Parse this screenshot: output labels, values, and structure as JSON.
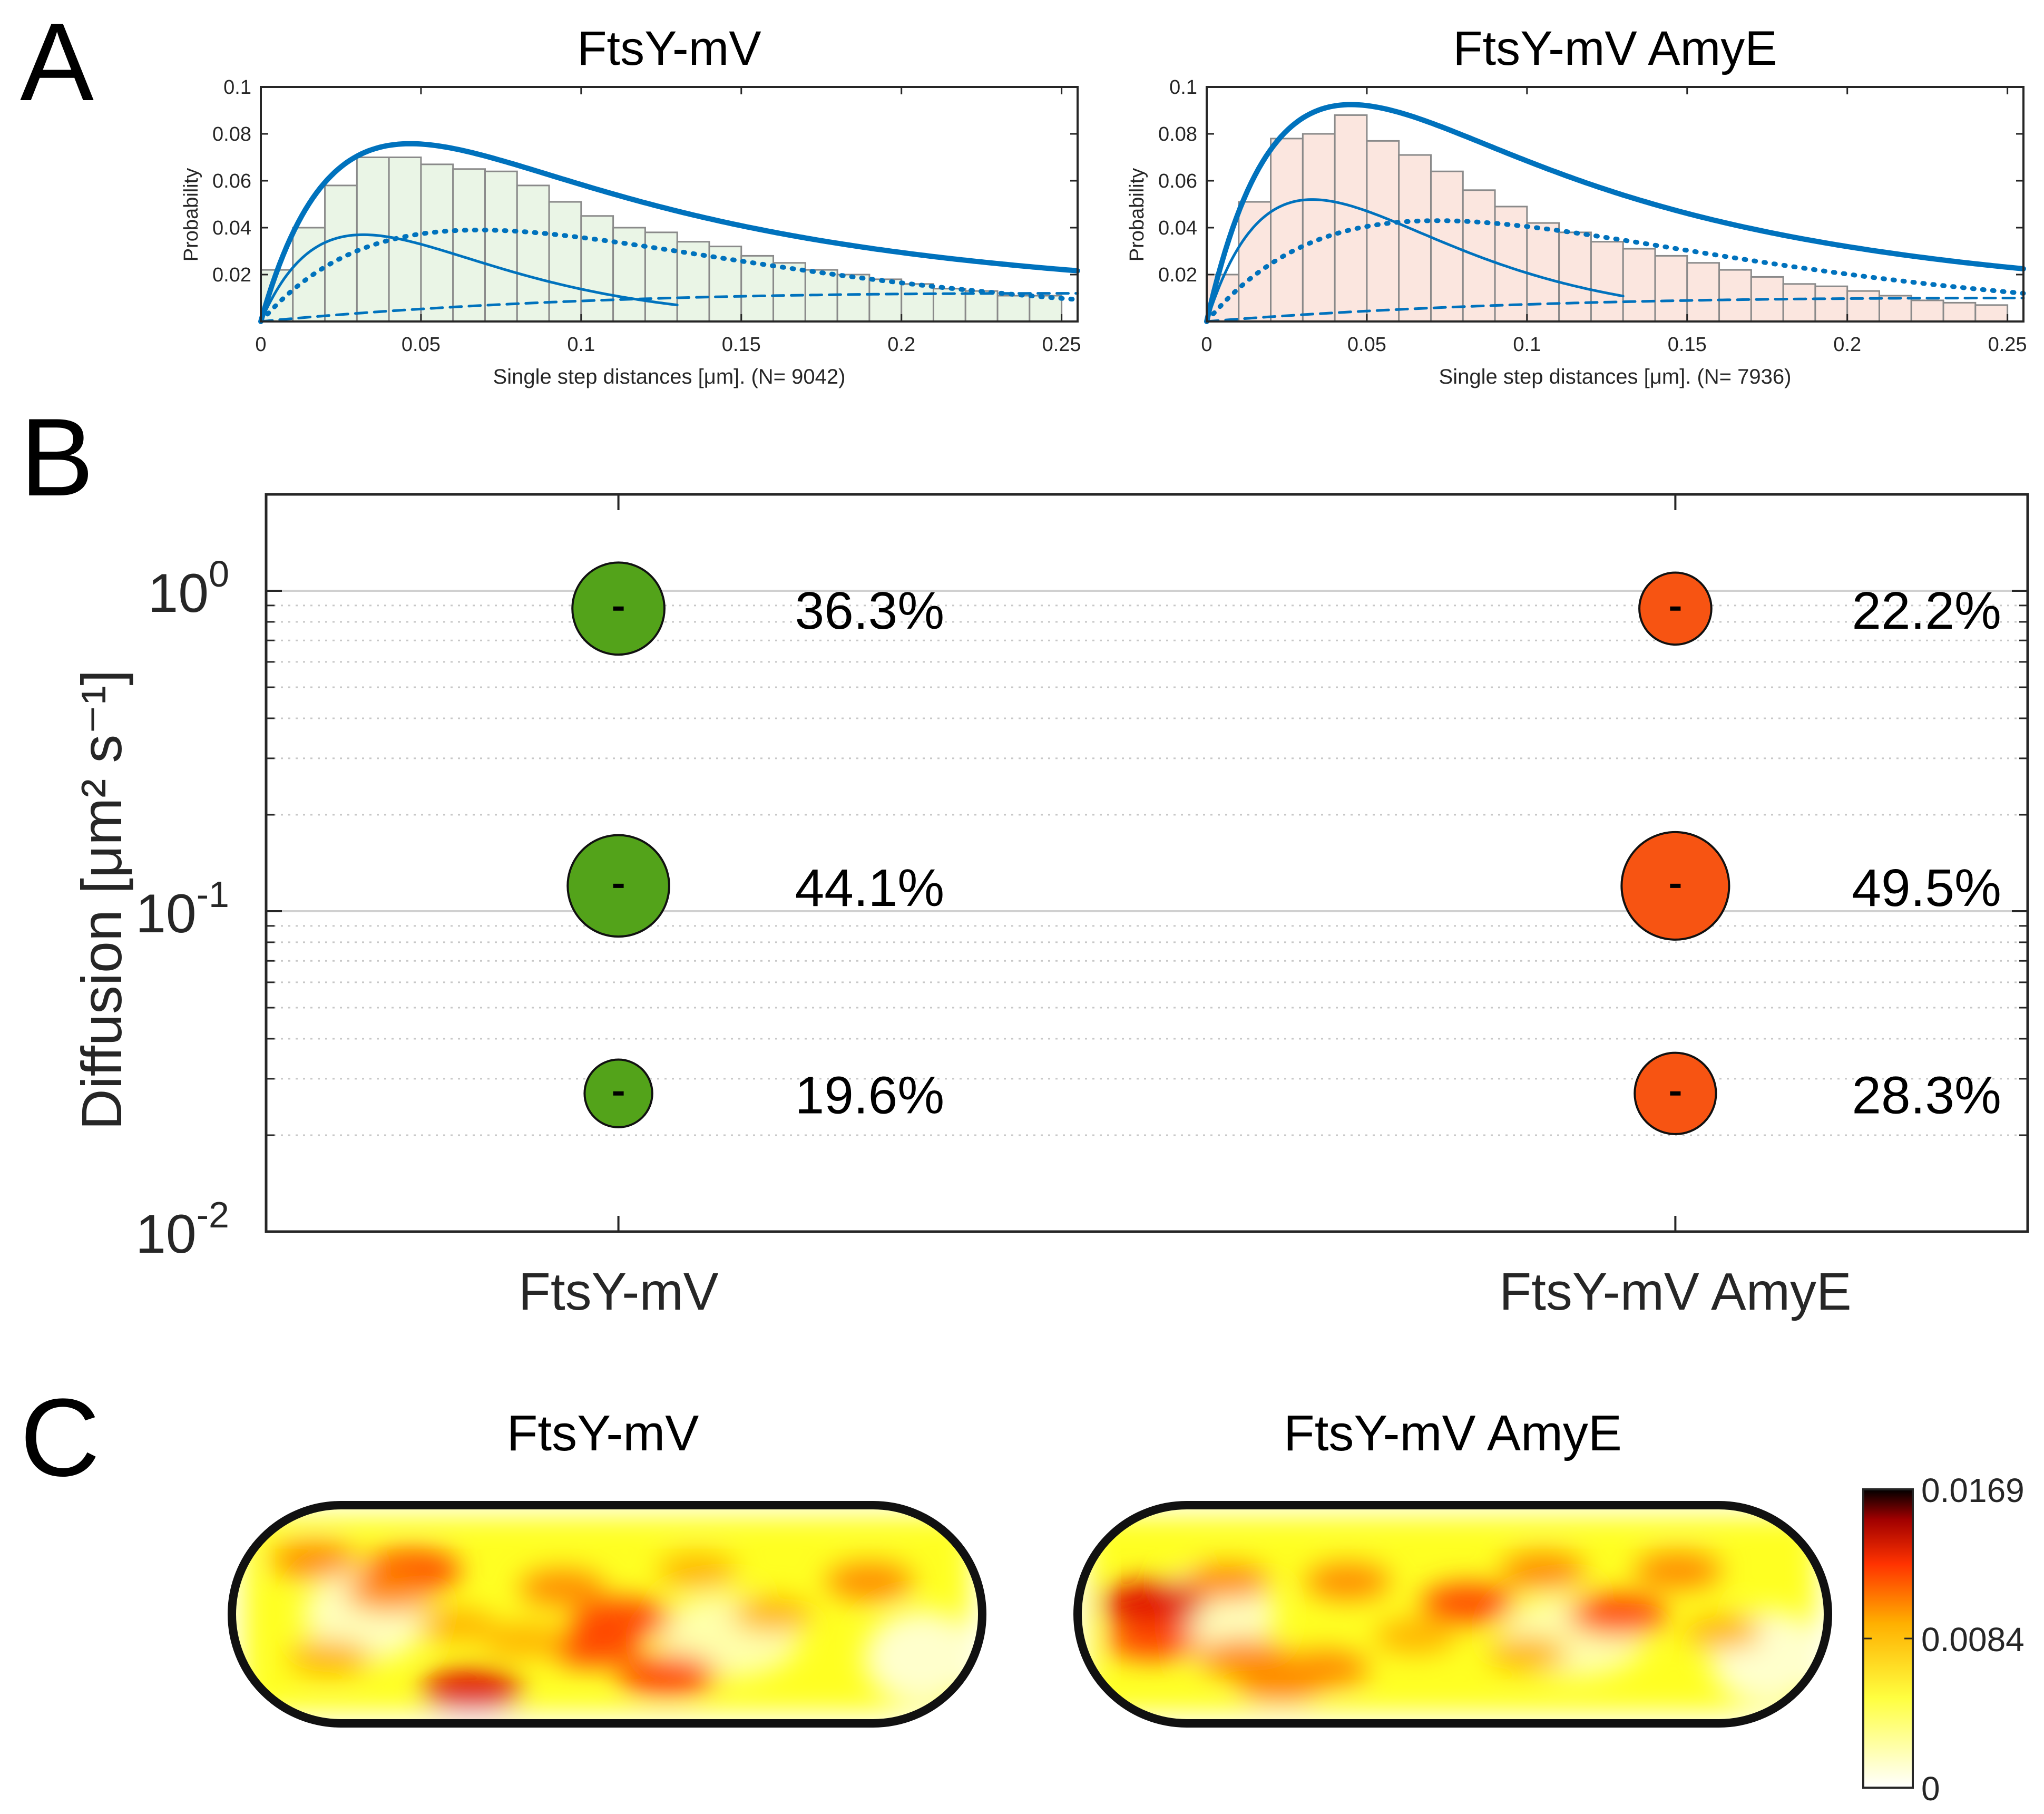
{
  "panels": {
    "a": {
      "letter": "A"
    },
    "b": {
      "letter": "B"
    },
    "c": {
      "letter": "C"
    }
  },
  "colors": {
    "curve": "#0072bd",
    "green": "#53a31a",
    "orange": "#f75412",
    "hist_fill_left": "#eaf5e6",
    "hist_fill_right": "#fbe6df",
    "hist_edge": "#8a8a8a",
    "cell_outline": "#111111"
  },
  "chart_data": [
    {
      "type": "bar",
      "title": "FtsY-mV",
      "xlabel": "Single step distances [μm]. (N= 9042)",
      "ylabel": "Probability",
      "xlim": [
        0,
        0.255
      ],
      "ylim": [
        0,
        0.1
      ],
      "xticks": [
        "0",
        "0.05",
        "0.1",
        "0.15",
        "0.2",
        "0.25"
      ],
      "yticks": [
        "0.02",
        "0.04",
        "0.06",
        "0.08",
        "0.1"
      ],
      "bin_width": 0.01,
      "values": [
        0.022,
        0.04,
        0.058,
        0.07,
        0.07,
        0.067,
        0.065,
        0.064,
        0.058,
        0.051,
        0.045,
        0.04,
        0.038,
        0.034,
        0.032,
        0.028,
        0.025,
        0.022,
        0.02,
        0.018,
        0.016,
        0.014,
        0.013,
        0.011,
        0.011
      ],
      "fit_total_peak": [
        0.043,
        0.07
      ],
      "components": [
        {
          "style": "thin-solid",
          "peak_x": 0.032,
          "peak_y": 0.037
        },
        {
          "style": "dotted",
          "peak_x": 0.068,
          "peak_y": 0.039
        },
        {
          "style": "dashed",
          "peak_x": 0.25,
          "peak_y": 0.012
        }
      ]
    },
    {
      "type": "bar",
      "title": "FtsY-mV AmyE",
      "xlabel": "Single step distances [μm]. (N= 7936)",
      "ylabel": "Probability",
      "xlim": [
        0,
        0.255
      ],
      "ylim": [
        0,
        0.1
      ],
      "xticks": [
        "0",
        "0.05",
        "0.1",
        "0.15",
        "0.2",
        "0.25"
      ],
      "yticks": [
        "0.02",
        "0.04",
        "0.06",
        "0.08",
        "0.1"
      ],
      "bin_width": 0.01,
      "values": [
        0.02,
        0.051,
        0.078,
        0.08,
        0.088,
        0.077,
        0.071,
        0.064,
        0.056,
        0.049,
        0.042,
        0.038,
        0.034,
        0.031,
        0.028,
        0.025,
        0.022,
        0.019,
        0.016,
        0.015,
        0.013,
        0.011,
        0.009,
        0.008,
        0.007
      ],
      "fit_total_peak": [
        0.042,
        0.087
      ],
      "components": [
        {
          "style": "thin-solid",
          "peak_x": 0.033,
          "peak_y": 0.052
        },
        {
          "style": "dotted",
          "peak_x": 0.072,
          "peak_y": 0.043
        },
        {
          "style": "dashed",
          "peak_x": 0.25,
          "peak_y": 0.01
        }
      ]
    },
    {
      "type": "scatter",
      "ylabel": "Diffusion [μm² s⁻¹]",
      "yscale": "log",
      "ylim": [
        0.01,
        2
      ],
      "yticks": [
        {
          "base": "10",
          "exp": "0",
          "value": 1
        },
        {
          "base": "10",
          "exp": "-1",
          "value": 0.1
        },
        {
          "base": "10",
          "exp": "-2",
          "value": 0.01
        }
      ],
      "categories": [
        "FtsY-mV",
        "FtsY-mV AmyE"
      ],
      "grid": "y-minor-dotted",
      "series": [
        {
          "category": "FtsY-mV",
          "color": "green",
          "points": [
            {
              "y": 0.88,
              "fraction": 36.3,
              "label": "36.3%"
            },
            {
              "y": 0.12,
              "fraction": 44.1,
              "label": "44.1%"
            },
            {
              "y": 0.027,
              "fraction": 19.6,
              "label": "19.6%"
            }
          ]
        },
        {
          "category": "FtsY-mV AmyE",
          "color": "orange",
          "points": [
            {
              "y": 0.88,
              "fraction": 22.2,
              "label": "22.2%"
            },
            {
              "y": 0.12,
              "fraction": 49.5,
              "label": "49.5%"
            },
            {
              "y": 0.027,
              "fraction": 28.3,
              "label": "28.3%"
            }
          ]
        }
      ]
    },
    {
      "type": "heatmap",
      "titles": [
        "FtsY-mV",
        "FtsY-mV AmyE"
      ],
      "colormap": "hot",
      "colorbar": {
        "min": 0,
        "max": 0.0169,
        "ticks": [
          "0.0169",
          "0.0084",
          "0"
        ]
      },
      "hotspots": [
        [
          {
            "u": 0.11,
            "v": 0.25,
            "i": 0.55
          },
          {
            "u": 0.24,
            "v": 0.3,
            "i": 0.85
          },
          {
            "u": 0.21,
            "v": 0.4,
            "i": 0.6
          },
          {
            "u": 0.44,
            "v": 0.38,
            "i": 0.55
          },
          {
            "u": 0.52,
            "v": 0.52,
            "i": 0.85
          },
          {
            "u": 0.48,
            "v": 0.65,
            "i": 0.7
          },
          {
            "u": 0.58,
            "v": 0.78,
            "i": 0.85
          },
          {
            "u": 0.32,
            "v": 0.85,
            "i": 0.9
          },
          {
            "u": 0.85,
            "v": 0.35,
            "i": 0.6
          },
          {
            "u": 0.13,
            "v": 0.7,
            "i": 0.45
          },
          {
            "u": 0.39,
            "v": 0.62,
            "i": 0.45
          },
          {
            "u": 0.72,
            "v": 0.5,
            "i": 0.4
          },
          {
            "u": 0.3,
            "v": 0.55,
            "i": 0.35
          },
          {
            "u": 0.62,
            "v": 0.3,
            "i": 0.4
          }
        ],
        [
          {
            "u": 0.1,
            "v": 0.45,
            "i": 1.0
          },
          {
            "u": 0.1,
            "v": 0.62,
            "i": 0.7
          },
          {
            "u": 0.22,
            "v": 0.7,
            "i": 0.65
          },
          {
            "u": 0.27,
            "v": 0.82,
            "i": 0.55
          },
          {
            "u": 0.33,
            "v": 0.75,
            "i": 0.6
          },
          {
            "u": 0.36,
            "v": 0.35,
            "i": 0.55
          },
          {
            "u": 0.52,
            "v": 0.45,
            "i": 0.75
          },
          {
            "u": 0.62,
            "v": 0.3,
            "i": 0.55
          },
          {
            "u": 0.72,
            "v": 0.5,
            "i": 0.85
          },
          {
            "u": 0.8,
            "v": 0.3,
            "i": 0.6
          },
          {
            "u": 0.2,
            "v": 0.35,
            "i": 0.5
          },
          {
            "u": 0.45,
            "v": 0.6,
            "i": 0.45
          },
          {
            "u": 0.6,
            "v": 0.68,
            "i": 0.4
          },
          {
            "u": 0.86,
            "v": 0.58,
            "i": 0.35
          }
        ]
      ]
    }
  ]
}
